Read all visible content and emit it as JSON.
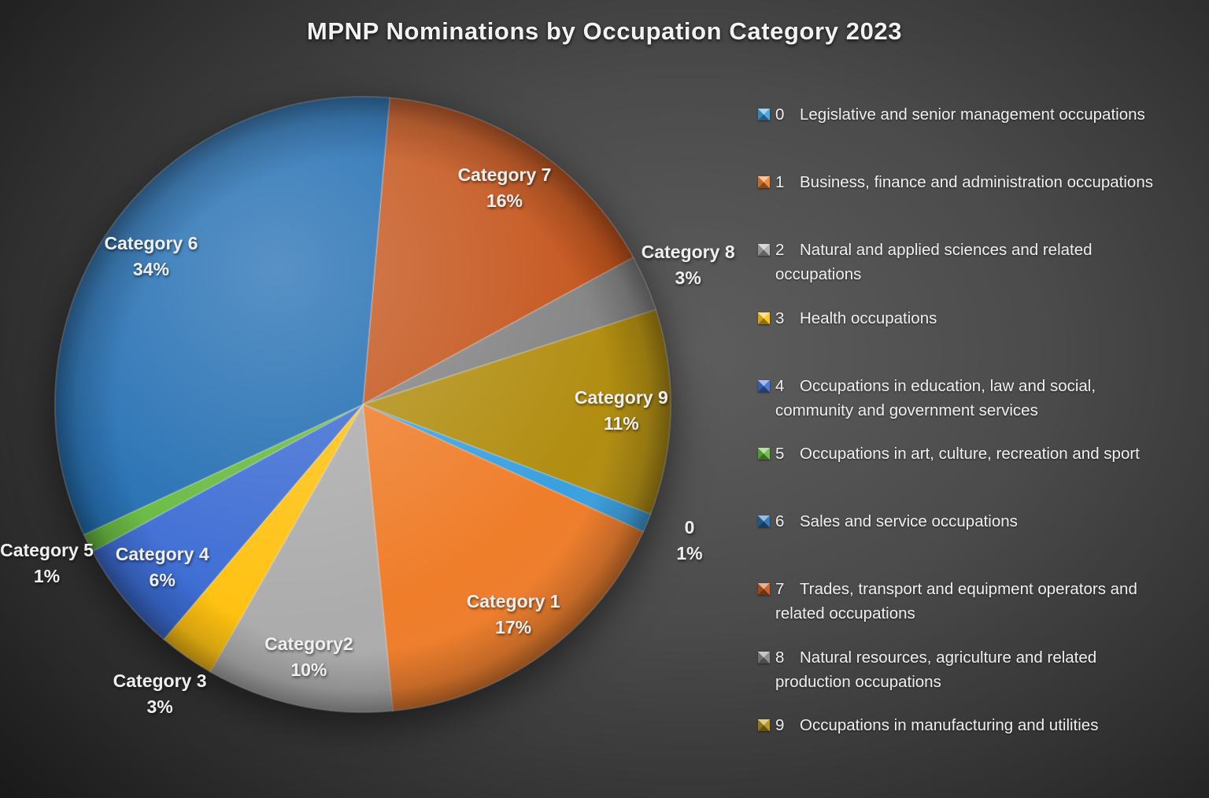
{
  "title": "MPNP Nominations by Occupation Category 2023",
  "chart_data": {
    "type": "pie",
    "title": "MPNP Nominations by Occupation Category 2023",
    "unit": "percent",
    "legend_position": "right",
    "grid": false,
    "start_angle_deg": 5,
    "draw_order": [
      "7",
      "8",
      "9",
      "0",
      "1",
      "2",
      "3",
      "4",
      "5",
      "6"
    ],
    "categories": [
      {
        "code": "0",
        "pie_label": "0",
        "pct": 1,
        "color": "#3BA0DE",
        "label_position": "outside",
        "legend_lines": [
          "Legislative and senior management occupations"
        ]
      },
      {
        "code": "1",
        "pie_label": "Category 1",
        "pct": 17,
        "color": "#EF7D2A",
        "label_position": "inside",
        "legend_lines": [
          "Business, finance and administration occupations"
        ]
      },
      {
        "code": "2",
        "pie_label": "Category2",
        "pct": 10,
        "color": "#ACACAC",
        "label_position": "inside",
        "legend_lines": [
          "Natural and applied sciences and related",
          "occupations"
        ]
      },
      {
        "code": "3",
        "pie_label": "Category 3",
        "pct": 3,
        "color": "#FFC110",
        "label_position": "outside",
        "legend_lines": [
          "Health occupations"
        ]
      },
      {
        "code": "4",
        "pie_label": "Category 4",
        "pct": 6,
        "color": "#3B6BD3",
        "label_position": "inside",
        "legend_lines": [
          "Occupations in education, law and social,",
          "community and government services"
        ]
      },
      {
        "code": "5",
        "pie_label": "Category 5",
        "pct": 1,
        "color": "#64B83C",
        "label_position": "outside",
        "legend_lines": [
          "Occupations in art, culture, recreation and sport"
        ]
      },
      {
        "code": "6",
        "pie_label": "Category 6",
        "pct": 34,
        "color": "#1E6BB1",
        "label_position": "inside",
        "legend_lines": [
          "Sales and service occupations"
        ]
      },
      {
        "code": "7",
        "pie_label": "Category 7",
        "pct": 16,
        "color": "#C4541B",
        "label_position": "inside",
        "legend_lines": [
          "Trades, transport and equipment operators and",
          "related occupations"
        ]
      },
      {
        "code": "8",
        "pie_label": "Category 8",
        "pct": 3,
        "color": "#838383",
        "label_position": "outside",
        "legend_lines": [
          "Natural resources, agriculture and related",
          "production occupations"
        ]
      },
      {
        "code": "9",
        "pie_label": "Category 9",
        "pct": 11,
        "color": "#B18D10",
        "label_position": "outside_right",
        "legend_lines": [
          "Occupations in manufacturing and utilities"
        ]
      }
    ]
  }
}
